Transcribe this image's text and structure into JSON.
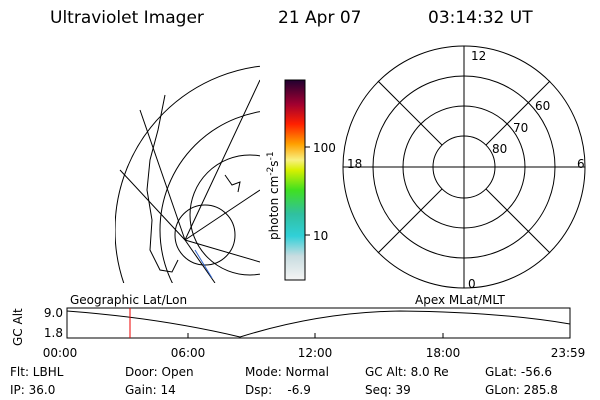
{
  "header": {
    "title": "Ultraviolet Imager",
    "date": "21 Apr 07",
    "time": "03:14:32 UT"
  },
  "colorbar": {
    "label": "photon cm",
    "exp1": "-2",
    "unit2": "s",
    "exp2": "-1",
    "ticks": [
      "100",
      "10"
    ]
  },
  "polar": {
    "mlt": [
      "12",
      "18",
      "6",
      "0"
    ],
    "mlat": [
      "60",
      "70",
      "80"
    ]
  },
  "timeline": {
    "left_label": "Geographic Lat/Lon",
    "right_label": "Apex MLat/MLT",
    "axis_label": "GC Alt",
    "yticks": [
      "9.0",
      "1.8"
    ],
    "xticks": [
      "00:00",
      "06:00",
      "12:00",
      "18:00",
      "23:59"
    ]
  },
  "footer": {
    "rows": [
      [
        "Flt: LBHL",
        "Door: Open",
        "Mode: Normal",
        "GC Alt: 8.0 Re",
        "GLat: -56.6"
      ],
      [
        "IP: 36.0",
        "Gain: 14",
        "Dsp:    -6.9",
        "Seq: 39",
        "GLon: 285.8"
      ]
    ]
  }
}
